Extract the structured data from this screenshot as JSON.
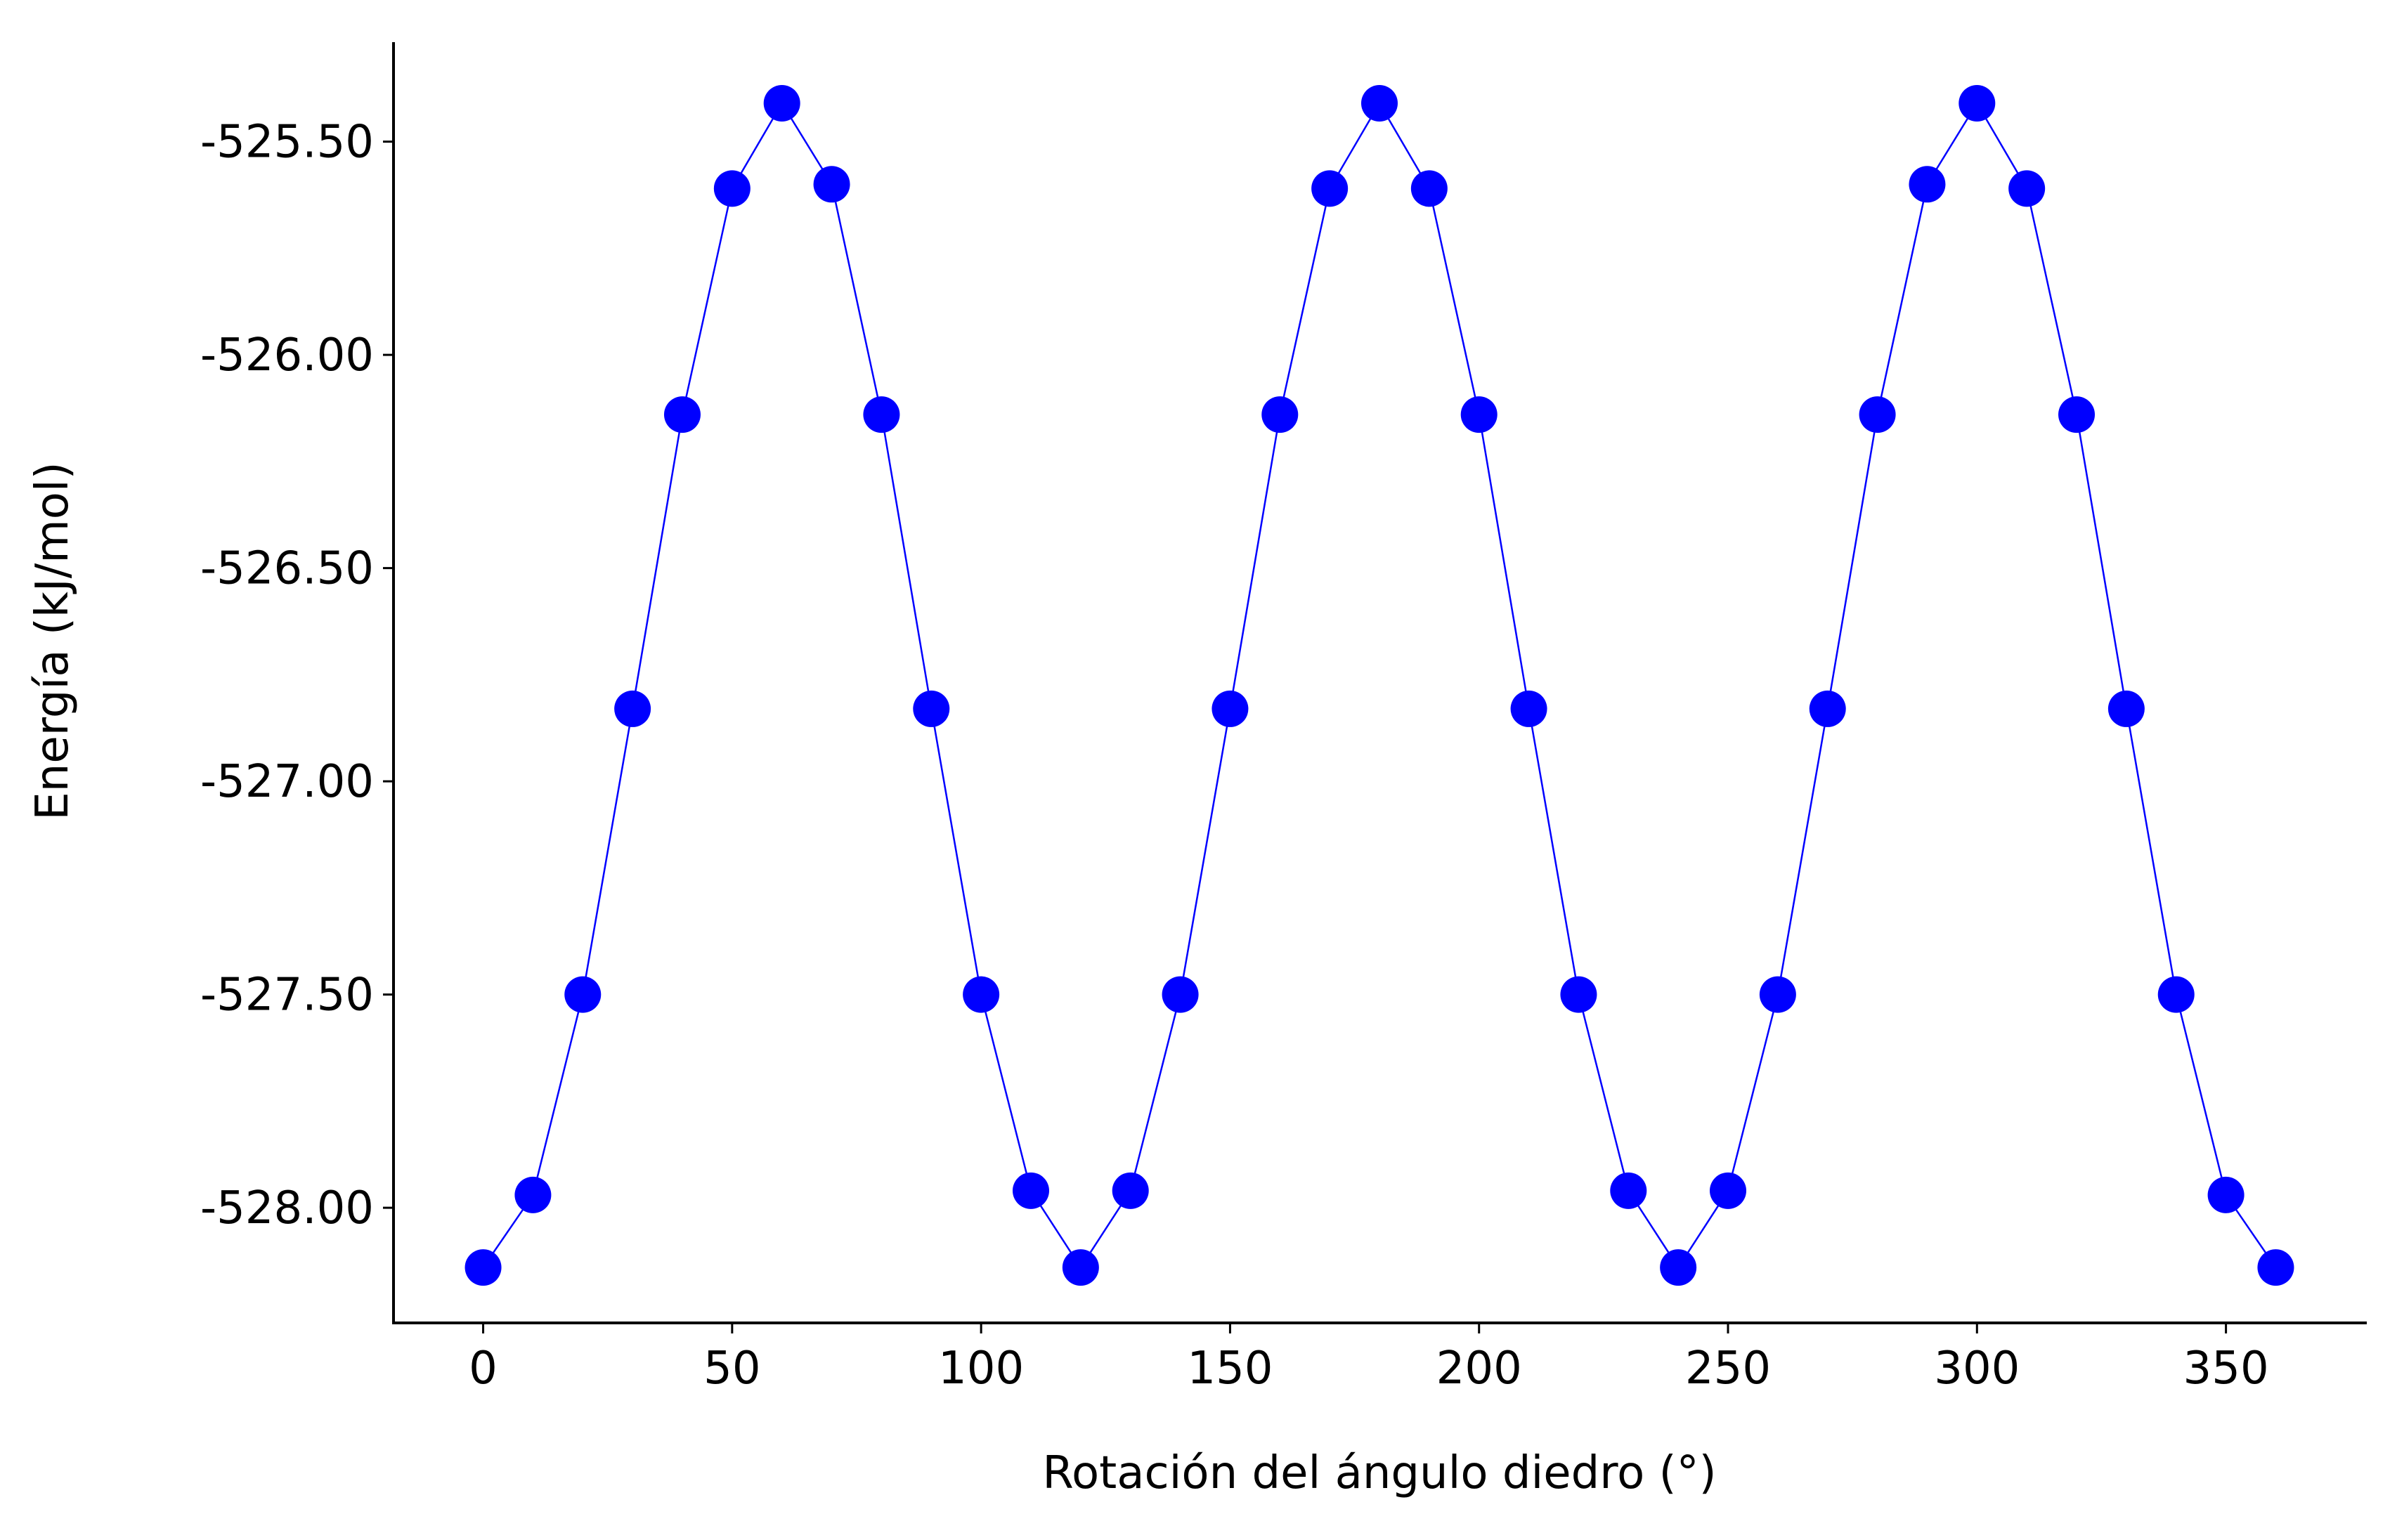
{
  "chart_data": {
    "type": "line",
    "title": "",
    "xlabel": "Rotación del ángulo diedro (°)",
    "ylabel": "Energía (kJ/mol)",
    "xlim": [
      -18,
      378
    ],
    "ylim": [
      -528.27,
      -525.27
    ],
    "xticks": [
      0,
      50,
      100,
      150,
      200,
      250,
      300,
      350
    ],
    "xtick_labels": [
      "0",
      "50",
      "100",
      "150",
      "200",
      "250",
      "300",
      "350"
    ],
    "yticks": [
      -525.5,
      -526.0,
      -526.5,
      -527.0,
      -527.5,
      -528.0
    ],
    "ytick_labels": [
      "-525.50",
      "-526.00",
      "-526.50",
      "-527.00",
      "-527.50",
      "-528.00"
    ],
    "grid": false,
    "legend": "none",
    "series": [
      {
        "color": "#0000ff",
        "marker": "circle",
        "x": [
          0,
          10,
          20,
          30,
          40,
          50,
          60,
          70,
          80,
          90,
          100,
          110,
          120,
          130,
          140,
          150,
          160,
          170,
          180,
          190,
          200,
          210,
          220,
          230,
          240,
          250,
          260,
          270,
          280,
          290,
          300,
          310,
          320,
          330,
          340,
          350,
          360
        ],
        "y": [
          -528.14,
          -527.97,
          -527.5,
          -526.83,
          -526.14,
          -525.61,
          -525.41,
          -525.6,
          -526.14,
          -526.83,
          -527.5,
          -527.96,
          -528.14,
          -527.96,
          -527.5,
          -526.83,
          -526.14,
          -525.61,
          -525.41,
          -525.61,
          -526.14,
          -526.83,
          -527.5,
          -527.96,
          -528.14,
          -527.96,
          -527.5,
          -526.83,
          -526.14,
          -525.6,
          -525.41,
          -525.61,
          -526.14,
          -526.83,
          -527.5,
          -527.97,
          -528.14
        ]
      }
    ]
  }
}
